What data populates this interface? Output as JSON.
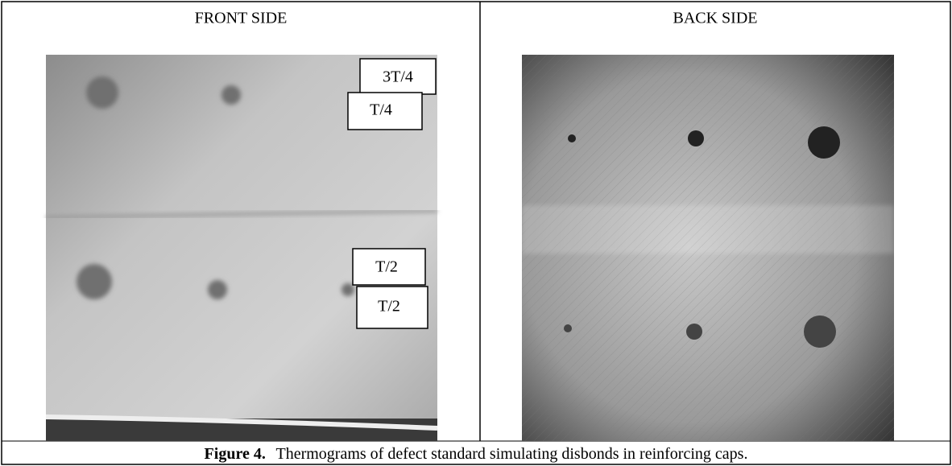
{
  "columns": [
    "FRONT SIDE",
    "BACK SIDE"
  ],
  "front_labels": [
    "3T/4",
    "T/4",
    "T/2",
    "T/2"
  ],
  "caption": {
    "label": "Figure 4.",
    "text": "Thermograms of defect standard simulating disbonds in reinforcing caps."
  }
}
